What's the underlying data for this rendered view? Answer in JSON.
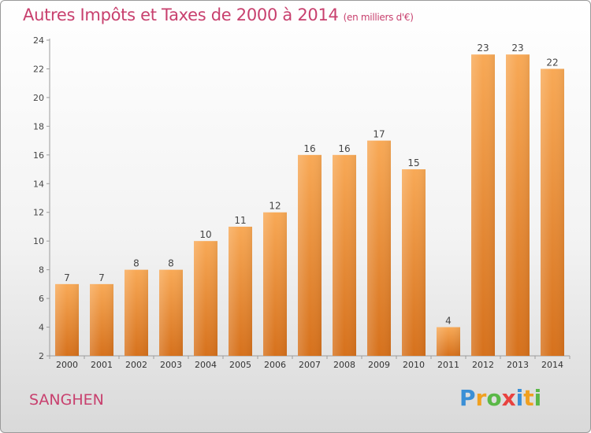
{
  "header": {
    "title": "Autres Impôts et Taxes de 2000 à 2014",
    "unit": "(en milliers d'€)"
  },
  "footer": {
    "town": "SANGHEN",
    "logo": "Proxiti"
  },
  "colors": {
    "title": "#c8406e",
    "bar_light": "#f7a752",
    "bar_dark": "#d8731e"
  },
  "chart_data": {
    "type": "bar",
    "categories": [
      "2000",
      "2001",
      "2002",
      "2003",
      "2004",
      "2005",
      "2006",
      "2007",
      "2008",
      "2009",
      "2010",
      "2011",
      "2012",
      "2013",
      "2014"
    ],
    "values": [
      7,
      7,
      8,
      8,
      10,
      11,
      12,
      16,
      16,
      17,
      15,
      4,
      23,
      23,
      22
    ],
    "title": "Autres Impôts et Taxes de 2000 à 2014",
    "xlabel": "",
    "ylabel": "",
    "ylim": [
      2,
      24
    ],
    "yticks": [
      2,
      4,
      6,
      8,
      10,
      12,
      14,
      16,
      18,
      20,
      22,
      24
    ],
    "grid": false,
    "data_labels": true
  }
}
